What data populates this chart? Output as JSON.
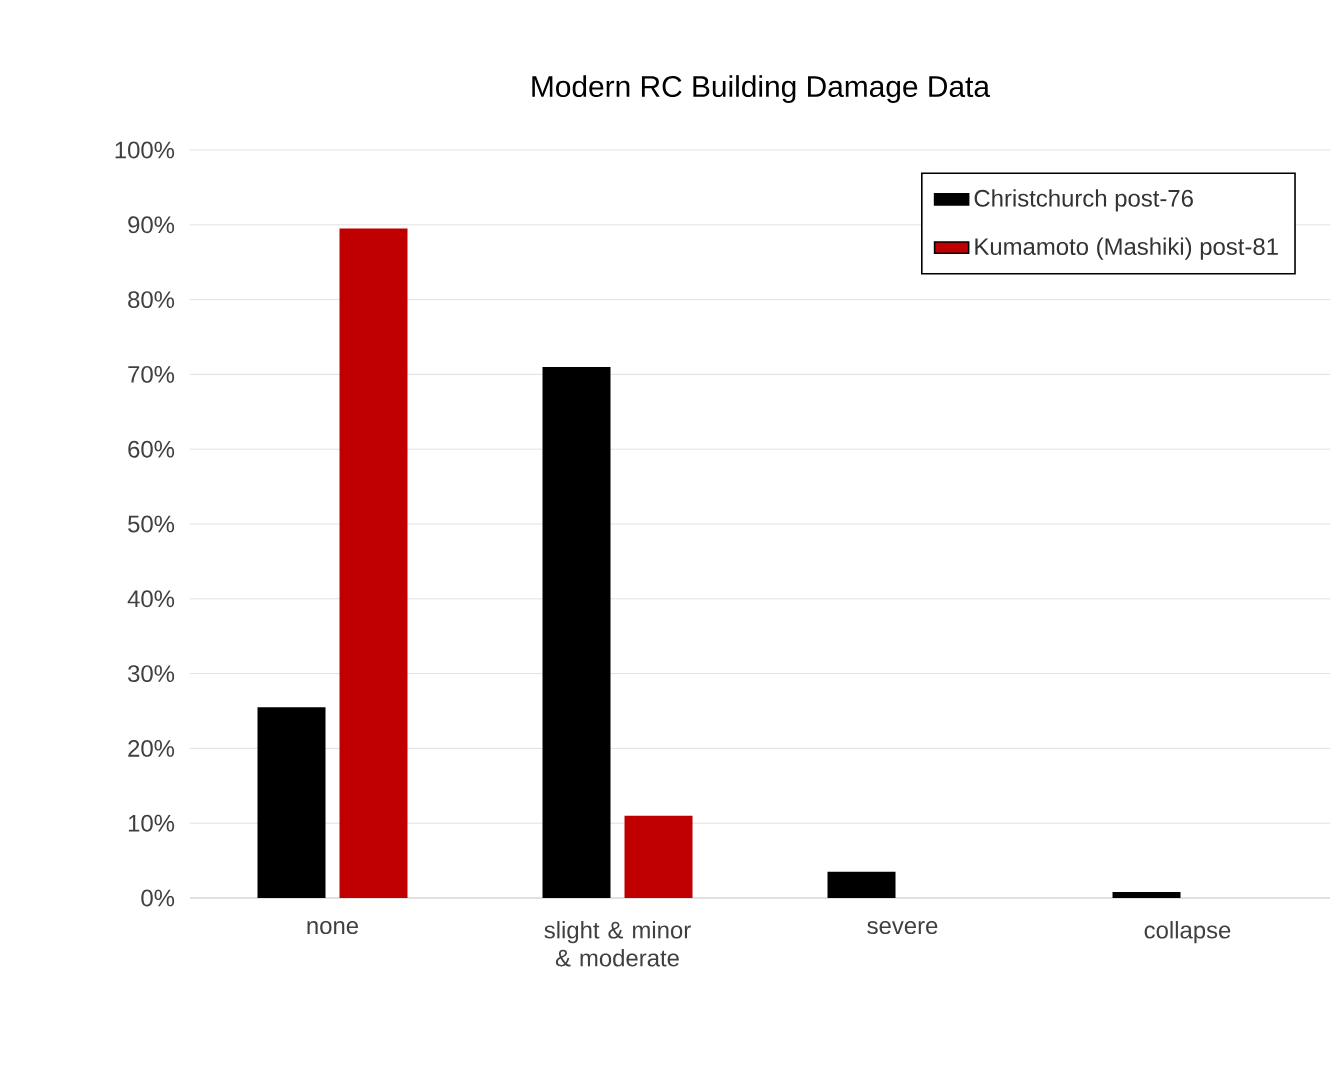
{
  "chart_data": {
    "type": "bar",
    "title": "Modern RC Building Damage Data",
    "categories": [
      "none",
      "slight & minor & moderate",
      "severe",
      "collapse"
    ],
    "series": [
      {
        "name": "Christchurch post-76",
        "color": "#000000",
        "values": [
          25.5,
          71,
          3.5,
          0.8
        ]
      },
      {
        "name": "Kumamoto (Mashiki) post-81",
        "color": "#c00000",
        "values": [
          89.5,
          11,
          0,
          0
        ]
      }
    ],
    "ylim": [
      0,
      100
    ],
    "yticks": [
      {
        "value": 0,
        "label": "0%"
      },
      {
        "value": 10,
        "label": "10%"
      },
      {
        "value": 20,
        "label": "20%"
      },
      {
        "value": 30,
        "label": "30%"
      },
      {
        "value": 40,
        "label": "40%"
      },
      {
        "value": 50,
        "label": "50%"
      },
      {
        "value": 60,
        "label": "60%"
      },
      {
        "value": 70,
        "label": "70%"
      },
      {
        "value": 80,
        "label": "80%"
      },
      {
        "value": 90,
        "label": "90%"
      },
      {
        "value": 100,
        "label": "100%"
      }
    ],
    "grid": "y",
    "legend": "top right"
  }
}
